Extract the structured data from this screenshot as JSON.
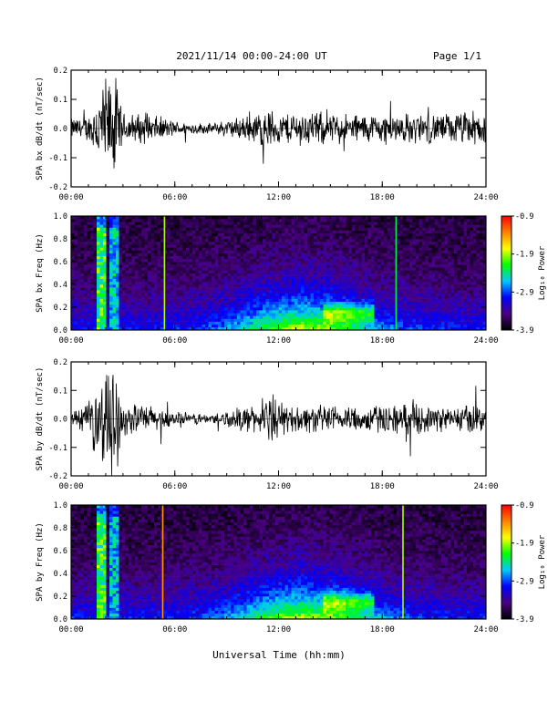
{
  "header": {
    "title": "2021/11/14  00:00-24:00 UT",
    "page": "Page 1/1"
  },
  "xlabel": "Universal Time (hh:mm)",
  "colorbar": {
    "label": "Log₁₀ Power",
    "ticks": [
      "-0.9",
      "-1.9",
      "-2.9",
      "-3.9"
    ],
    "colors": [
      "#000000",
      "#4b0082",
      "#0000ff",
      "#00c8ff",
      "#00ff00",
      "#ffff00",
      "#ff8000",
      "#ff0000"
    ]
  },
  "chart_data": [
    {
      "type": "line",
      "ylabel": "SPA bx dB/dt (nT/sec)",
      "xlim": [
        "00:00",
        "24:00"
      ],
      "xticks": [
        "00:00",
        "06:00",
        "12:00",
        "18:00",
        "24:00"
      ],
      "ylim": [
        -0.2,
        0.2
      ],
      "yticks": [
        "0.2",
        "0.1",
        "0.0",
        "-0.1",
        "-0.2"
      ],
      "envelope_hours": [
        0,
        1,
        1.8,
        2.2,
        2.6,
        3,
        4,
        5,
        6,
        8,
        10,
        11,
        11.5,
        12,
        13,
        14,
        15,
        16,
        17,
        18,
        19,
        20,
        21,
        22,
        23,
        24
      ],
      "envelope_amp": [
        0.04,
        0.05,
        0.2,
        0.2,
        0.2,
        0.06,
        0.06,
        0.05,
        0.03,
        0.02,
        0.05,
        0.07,
        0.08,
        0.06,
        0.07,
        0.07,
        0.06,
        0.06,
        0.06,
        0.06,
        0.06,
        0.06,
        0.06,
        0.06,
        0.07,
        0.07
      ]
    },
    {
      "type": "heatmap",
      "ylabel": "SPA bx Freq (Hz)",
      "xticks": [
        "00:00",
        "06:00",
        "12:00",
        "18:00",
        "24:00"
      ],
      "ylim": [
        0.0,
        1.0
      ],
      "yticks": [
        "1.0",
        "0.8",
        "0.6",
        "0.4",
        "0.2",
        "0.0"
      ],
      "zlim": [
        -3.9,
        -0.9
      ],
      "features": [
        {
          "hour": 1.8,
          "kind": "broadband",
          "level": -1.8
        },
        {
          "hour": 2.5,
          "kind": "broadband",
          "level": -2.3
        },
        {
          "hour": 5.4,
          "kind": "line",
          "level": -1.9
        },
        {
          "hour": 18.8,
          "kind": "line",
          "level": -2.3
        }
      ]
    },
    {
      "type": "line",
      "ylabel": "SPA by dB/dt (nT/sec)",
      "xlim": [
        "00:00",
        "24:00"
      ],
      "xticks": [
        "00:00",
        "06:00",
        "12:00",
        "18:00",
        "24:00"
      ],
      "ylim": [
        -0.2,
        0.2
      ],
      "yticks": [
        "0.2",
        "0.1",
        "0.0",
        "-0.1",
        "-0.2"
      ],
      "envelope_hours": [
        0,
        1,
        1.8,
        2.2,
        2.6,
        3,
        4,
        5,
        6,
        8,
        10,
        11,
        11.5,
        12,
        13,
        14,
        15,
        16,
        17,
        18,
        19,
        20,
        21,
        22,
        23,
        24
      ],
      "envelope_amp": [
        0.03,
        0.06,
        0.2,
        0.2,
        0.2,
        0.07,
        0.06,
        0.05,
        0.03,
        0.02,
        0.05,
        0.06,
        0.1,
        0.07,
        0.05,
        0.06,
        0.05,
        0.06,
        0.05,
        0.06,
        0.06,
        0.06,
        0.05,
        0.05,
        0.06,
        0.06
      ]
    },
    {
      "type": "heatmap",
      "ylabel": "SPA by Freq (Hz)",
      "xticks": [
        "00:00",
        "06:00",
        "12:00",
        "18:00",
        "24:00"
      ],
      "ylim": [
        0.0,
        1.0
      ],
      "yticks": [
        "1.0",
        "0.8",
        "0.6",
        "0.4",
        "0.2",
        "0.0"
      ],
      "zlim": [
        -3.9,
        -0.9
      ],
      "features": [
        {
          "hour": 1.8,
          "kind": "broadband",
          "level": -1.8
        },
        {
          "hour": 2.5,
          "kind": "broadband",
          "level": -2.3
        },
        {
          "hour": 5.3,
          "kind": "line",
          "level": -1.4
        },
        {
          "hour": 19.2,
          "kind": "line",
          "level": -1.9
        }
      ]
    }
  ]
}
